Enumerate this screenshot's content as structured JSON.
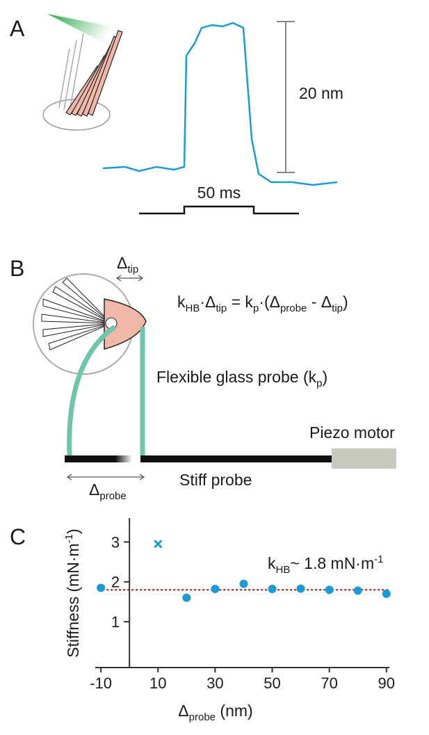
{
  "panel_a": {
    "label": "A",
    "scale_bar": "20 nm",
    "stimulus": "50 ms"
  },
  "panel_b": {
    "label": "B",
    "delta_tip": [
      "Δ",
      "tip"
    ],
    "equation": [
      "k",
      "HB",
      "·Δ",
      "tip",
      " = k",
      "p",
      "·(Δ",
      "probe",
      " - Δ",
      "tip",
      ")"
    ],
    "probe_label": [
      "Flexible glass probe (k",
      "p",
      ")"
    ],
    "piezo": "Piezo motor",
    "stiff": "Stiff probe",
    "delta_probe": [
      "Δ",
      "probe"
    ]
  },
  "chart_data": {
    "type": "scatter",
    "panel_label": "C",
    "ylabel": [
      "Stiffness (mN·m",
      "-1",
      ")"
    ],
    "xlabel": [
      "Δ",
      "probe",
      " (nm)"
    ],
    "annotation": [
      "k",
      "HB",
      "~ 1.8 mN·m",
      "-1"
    ],
    "series": [
      {
        "marker": "circle",
        "color": "#1b9ad6",
        "x": [
          -10,
          20,
          30,
          40,
          50,
          60,
          70,
          80,
          90
        ],
        "values": [
          1.85,
          1.6,
          1.82,
          1.95,
          1.82,
          1.83,
          1.8,
          1.78,
          1.7
        ]
      },
      {
        "marker": "cross",
        "color": "#1b9ad6",
        "x": [
          10
        ],
        "values": [
          2.95
        ]
      }
    ],
    "reference_line": {
      "value": 1.8,
      "color": "#c00000"
    },
    "xlim": [
      -11,
      92
    ],
    "xticks": [
      -10,
      10,
      30,
      50,
      70,
      90
    ],
    "ylim": [
      -0.15,
      3.6
    ],
    "yticks": [
      1,
      2,
      3
    ]
  }
}
